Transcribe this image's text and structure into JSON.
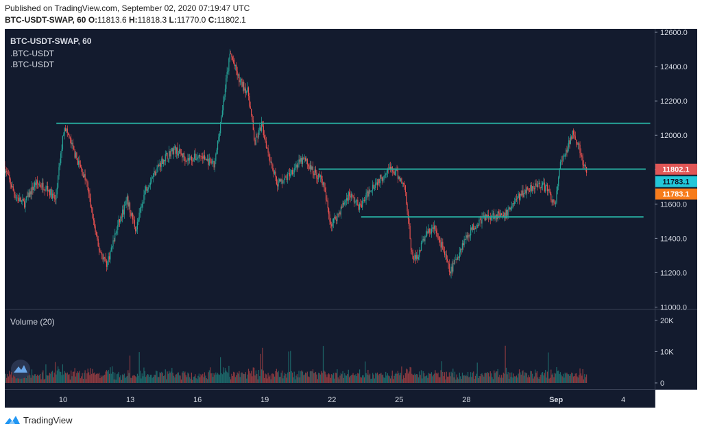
{
  "header": {
    "published": "Published on TradingView.com, September 02, 2020 07:19:47 UTC",
    "symbol": "BTC-USDT-SWAP, 60",
    "o_label": "O:",
    "o": "11813.6",
    "h_label": "H:",
    "h": "11818.3",
    "l_label": "L:",
    "l": "11770.0",
    "c_label": "C:",
    "c": "11802.1"
  },
  "legend": {
    "title": "BTC-USDT-SWAP, 60",
    "line1": ".BTC-USDT",
    "line2": ".BTC-USDT",
    "volume": "Volume (20)"
  },
  "price_labels": [
    {
      "text": "11802.1",
      "color": "#e05656",
      "value": 11802.1
    },
    {
      "text": "11783.1",
      "color": "#22c7d9",
      "value": 11783.1
    },
    {
      "text": "11783.1",
      "color": "#f77c1b",
      "value": 11783.1
    }
  ],
  "footer": {
    "brand": "TradingView"
  },
  "colors": {
    "background": "#131b2e",
    "up": "#26a69a",
    "down": "#ef5350",
    "line": "#26a69a"
  },
  "chart_data": {
    "type": "candlestick",
    "title": "BTC-USDT-SWAP, 60",
    "y_ticks": [
      "11000.0",
      "11200.0",
      "11400.0",
      "11600.0",
      "11800.0",
      "12000.0",
      "12200.0",
      "12400.0",
      "12600.0"
    ],
    "y_tick_values": [
      11000,
      11200,
      11400,
      11600,
      11800,
      12000,
      12200,
      12400,
      12600
    ],
    "ylim": [
      10990,
      12620
    ],
    "x_ticks": [
      "10",
      "13",
      "16",
      "19",
      "22",
      "25",
      "28",
      "Sep",
      "4"
    ],
    "x_tick_days": [
      10,
      13,
      16,
      19,
      22,
      25,
      28,
      32,
      35
    ],
    "x_range_days": [
      7.4,
      36.4
    ],
    "volume_ticks": [
      "0",
      "10K",
      "20K"
    ],
    "volume_tick_values": [
      0,
      10000,
      20000
    ],
    "volume_max": 21500,
    "price_path_days": [
      7.4,
      7.9,
      8.3,
      8.8,
      9.3,
      9.7,
      10.1,
      10.6,
      11.1,
      11.6,
      12.0,
      12.5,
      12.9,
      13.3,
      13.7,
      14.1,
      14.5,
      15.0,
      15.6,
      16.2,
      16.8,
      17.3,
      17.5,
      17.9,
      18.3,
      18.6,
      18.9,
      19.2,
      19.6,
      20.0,
      20.4,
      20.8,
      21.2,
      21.6,
      22.0,
      22.4,
      22.8,
      23.3,
      23.8,
      24.3,
      24.5,
      24.9,
      25.3,
      25.6,
      25.8,
      26.2,
      26.6,
      27.0,
      27.3,
      27.6,
      27.9,
      28.3,
      28.8,
      29.3,
      29.7,
      30.2,
      30.7,
      31.2,
      31.5,
      31.7,
      32.0,
      32.2,
      32.5,
      32.8,
      33.0,
      33.2,
      33.4
    ],
    "price_path_values": [
      11820,
      11650,
      11600,
      11720,
      11700,
      11620,
      12060,
      11880,
      11720,
      11350,
      11250,
      11480,
      11620,
      11450,
      11680,
      11780,
      11860,
      11920,
      11860,
      11880,
      11820,
      12300,
      12480,
      12320,
      12250,
      11950,
      12060,
      11900,
      11720,
      11750,
      11820,
      11860,
      11790,
      11740,
      11480,
      11560,
      11660,
      11580,
      11700,
      11760,
      11810,
      11780,
      11700,
      11300,
      11280,
      11420,
      11460,
      11340,
      11200,
      11280,
      11380,
      11460,
      11520,
      11540,
      11520,
      11620,
      11680,
      11720,
      11700,
      11680,
      11580,
      11820,
      11900,
      12030,
      11960,
      11850,
      11780
    ],
    "candle_sigma": 35,
    "horizontal_lines": [
      {
        "price": 12070,
        "from_day": 9.7,
        "to_day": 36.2
      },
      {
        "price": 11803,
        "from_day": 21.4,
        "to_day": 36.0
      },
      {
        "price": 11525,
        "from_day": 23.3,
        "to_day": 35.9
      }
    ]
  }
}
